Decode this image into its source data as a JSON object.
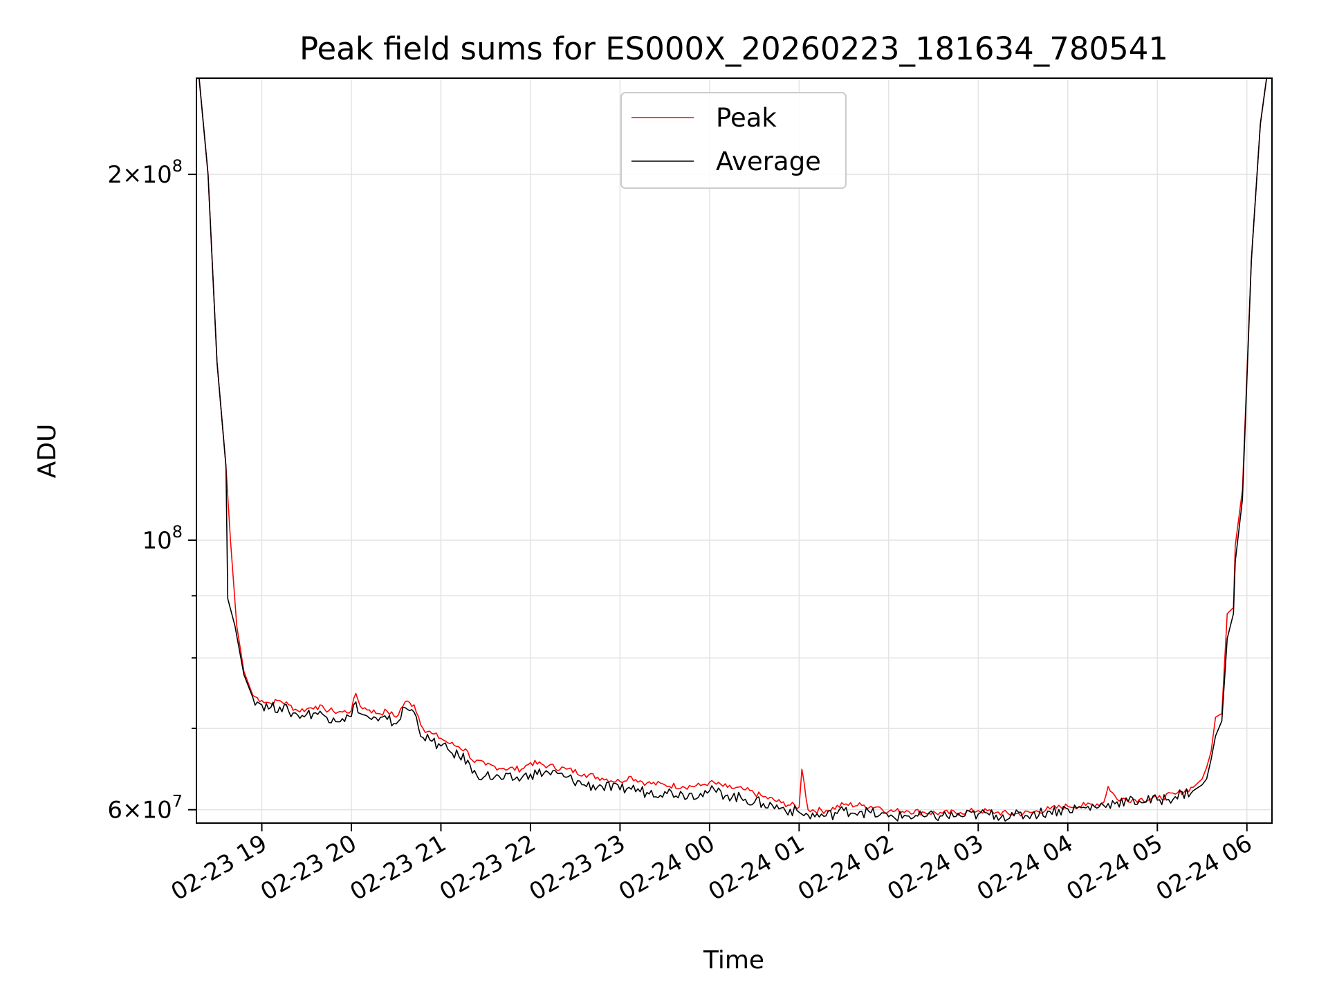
{
  "chart_data": {
    "type": "line",
    "title": "Peak field sums for ES000X_20260223_181634_780541",
    "xlabel": "Time",
    "ylabel": "ADU",
    "yscale": "log",
    "ylim": [
      58500000,
      240000000
    ],
    "xlim_hours": [
      18.27,
      30.28
    ],
    "grid": true,
    "legend_position": "upper center",
    "x_ticks": [
      {
        "hour": 19,
        "label": "02-23 19"
      },
      {
        "hour": 20,
        "label": "02-23 20"
      },
      {
        "hour": 21,
        "label": "02-23 21"
      },
      {
        "hour": 22,
        "label": "02-23 22"
      },
      {
        "hour": 23,
        "label": "02-23 23"
      },
      {
        "hour": 24,
        "label": "02-24 00"
      },
      {
        "hour": 25,
        "label": "02-24 01"
      },
      {
        "hour": 26,
        "label": "02-24 02"
      },
      {
        "hour": 27,
        "label": "02-24 03"
      },
      {
        "hour": 28,
        "label": "02-24 04"
      },
      {
        "hour": 29,
        "label": "02-24 05"
      },
      {
        "hour": 30,
        "label": "02-24 06"
      }
    ],
    "y_major_ticks": [
      {
        "value": 60000000,
        "base": "6",
        "exp": "7"
      },
      {
        "value": 100000000,
        "base": "",
        "exp": "8"
      },
      {
        "value": 200000000,
        "base": "2",
        "exp": "8"
      }
    ],
    "y_minor_ticks": [
      70000000,
      80000000,
      90000000
    ],
    "series": [
      {
        "name": "Peak",
        "color": "#ff0000",
        "points": [
          [
            18.3,
            240000000
          ],
          [
            18.4,
            200000000
          ],
          [
            18.5,
            140000000
          ],
          [
            18.6,
            115000000
          ],
          [
            18.65,
            100000000
          ],
          [
            18.72,
            85000000
          ],
          [
            18.8,
            78000000
          ],
          [
            18.9,
            74500000
          ],
          [
            19.0,
            73800000
          ],
          [
            19.1,
            73400000
          ],
          [
            19.2,
            73800000
          ],
          [
            19.3,
            73200000
          ],
          [
            19.4,
            72400000
          ],
          [
            19.5,
            72600000
          ],
          [
            19.6,
            73000000
          ],
          [
            19.7,
            72600000
          ],
          [
            19.8,
            72300000
          ],
          [
            19.9,
            72200000
          ],
          [
            20.0,
            72400000
          ],
          [
            20.05,
            74800000
          ],
          [
            20.1,
            73000000
          ],
          [
            20.2,
            72500000
          ],
          [
            20.3,
            72000000
          ],
          [
            20.4,
            72300000
          ],
          [
            20.5,
            71500000
          ],
          [
            20.6,
            73600000
          ],
          [
            20.7,
            73200000
          ],
          [
            20.8,
            70000000
          ],
          [
            20.9,
            69300000
          ],
          [
            21.0,
            68700000
          ],
          [
            21.1,
            68000000
          ],
          [
            21.2,
            67600000
          ],
          [
            21.3,
            67000000
          ],
          [
            21.35,
            65900000
          ],
          [
            21.5,
            65300000
          ],
          [
            21.7,
            64900000
          ],
          [
            21.9,
            64800000
          ],
          [
            22.0,
            65600000
          ],
          [
            22.2,
            65200000
          ],
          [
            22.4,
            64800000
          ],
          [
            22.6,
            64200000
          ],
          [
            22.8,
            63700000
          ],
          [
            23.0,
            63300000
          ],
          [
            23.1,
            63900000
          ],
          [
            23.3,
            63100000
          ],
          [
            23.5,
            62900000
          ],
          [
            23.7,
            62700000
          ],
          [
            23.9,
            62800000
          ],
          [
            24.0,
            63200000
          ],
          [
            24.2,
            62600000
          ],
          [
            24.4,
            62300000
          ],
          [
            24.6,
            61500000
          ],
          [
            24.8,
            60800000
          ],
          [
            25.0,
            60300000
          ],
          [
            25.03,
            64800000
          ],
          [
            25.1,
            60000000
          ],
          [
            25.3,
            59900000
          ],
          [
            25.5,
            60600000
          ],
          [
            25.7,
            60500000
          ],
          [
            25.9,
            60300000
          ],
          [
            26.0,
            59800000
          ],
          [
            26.2,
            59900000
          ],
          [
            26.4,
            59700000
          ],
          [
            26.6,
            59600000
          ],
          [
            26.8,
            59700000
          ],
          [
            27.0,
            59900000
          ],
          [
            27.2,
            59700000
          ],
          [
            27.4,
            59500000
          ],
          [
            27.6,
            59700000
          ],
          [
            27.8,
            60100000
          ],
          [
            28.0,
            60400000
          ],
          [
            28.2,
            60500000
          ],
          [
            28.4,
            60800000
          ],
          [
            28.45,
            62700000
          ],
          [
            28.55,
            61200000
          ],
          [
            28.8,
            61200000
          ],
          [
            29.0,
            61300000
          ],
          [
            29.2,
            61800000
          ],
          [
            29.4,
            62600000
          ],
          [
            29.5,
            63600000
          ],
          [
            29.55,
            65000000
          ],
          [
            29.6,
            67000000
          ],
          [
            29.65,
            71500000
          ],
          [
            29.72,
            72000000
          ],
          [
            29.78,
            87000000
          ],
          [
            29.85,
            88000000
          ],
          [
            29.87,
            99000000
          ],
          [
            29.95,
            110000000
          ],
          [
            30.05,
            170000000
          ],
          [
            30.15,
            220000000
          ],
          [
            30.22,
            240000000
          ]
        ]
      },
      {
        "name": "Average",
        "color": "#000000",
        "points": [
          [
            18.3,
            240000000
          ],
          [
            18.4,
            200000000
          ],
          [
            18.5,
            140000000
          ],
          [
            18.6,
            115000000
          ],
          [
            18.62,
            89500000
          ],
          [
            18.7,
            85000000
          ],
          [
            18.8,
            77500000
          ],
          [
            18.9,
            74200000
          ],
          [
            19.0,
            73200000
          ],
          [
            19.1,
            72800000
          ],
          [
            19.2,
            72900000
          ],
          [
            19.3,
            72300000
          ],
          [
            19.4,
            71800000
          ],
          [
            19.5,
            71900000
          ],
          [
            19.6,
            72100000
          ],
          [
            19.7,
            71700000
          ],
          [
            19.8,
            71400000
          ],
          [
            19.9,
            71300000
          ],
          [
            20.0,
            71600000
          ],
          [
            20.05,
            73600000
          ],
          [
            20.1,
            72000000
          ],
          [
            20.2,
            71400000
          ],
          [
            20.3,
            71000000
          ],
          [
            20.4,
            71200000
          ],
          [
            20.5,
            70600000
          ],
          [
            20.6,
            72800000
          ],
          [
            20.7,
            72200000
          ],
          [
            20.8,
            68800000
          ],
          [
            20.9,
            68300000
          ],
          [
            21.0,
            67700000
          ],
          [
            21.1,
            67000000
          ],
          [
            21.2,
            66400000
          ],
          [
            21.3,
            65900000
          ],
          [
            21.35,
            64300000
          ],
          [
            21.5,
            64000000
          ],
          [
            21.7,
            63600000
          ],
          [
            21.9,
            63700000
          ],
          [
            22.0,
            64200000
          ],
          [
            22.2,
            64400000
          ],
          [
            22.4,
            63800000
          ],
          [
            22.6,
            62900000
          ],
          [
            22.8,
            62700000
          ],
          [
            23.0,
            62300000
          ],
          [
            23.1,
            62600000
          ],
          [
            23.3,
            62000000
          ],
          [
            23.5,
            62100000
          ],
          [
            23.7,
            61800000
          ],
          [
            23.9,
            61900000
          ],
          [
            24.0,
            62200000
          ],
          [
            24.2,
            61700000
          ],
          [
            24.4,
            61200000
          ],
          [
            24.6,
            60700000
          ],
          [
            24.8,
            60200000
          ],
          [
            25.0,
            59700000
          ],
          [
            25.03,
            59500000
          ],
          [
            25.1,
            59400000
          ],
          [
            25.3,
            59300000
          ],
          [
            25.5,
            59900000
          ],
          [
            25.7,
            59800000
          ],
          [
            25.9,
            59400000
          ],
          [
            26.0,
            59200000
          ],
          [
            26.2,
            59300000
          ],
          [
            26.4,
            59200000
          ],
          [
            26.6,
            59300000
          ],
          [
            26.8,
            59300000
          ],
          [
            27.0,
            59500000
          ],
          [
            27.2,
            59400000
          ],
          [
            27.4,
            59300000
          ],
          [
            27.6,
            59500000
          ],
          [
            27.8,
            59800000
          ],
          [
            28.0,
            60100000
          ],
          [
            28.2,
            60200000
          ],
          [
            28.4,
            60500000
          ],
          [
            28.45,
            60700000
          ],
          [
            28.55,
            60900000
          ],
          [
            28.8,
            61000000
          ],
          [
            29.0,
            61100000
          ],
          [
            29.2,
            61500000
          ],
          [
            29.4,
            62200000
          ],
          [
            29.5,
            62900000
          ],
          [
            29.55,
            63600000
          ],
          [
            29.6,
            66000000
          ],
          [
            29.65,
            69000000
          ],
          [
            29.72,
            71000000
          ],
          [
            29.78,
            83000000
          ],
          [
            29.85,
            87000000
          ],
          [
            29.87,
            96000000
          ],
          [
            29.95,
            108000000
          ],
          [
            30.05,
            170000000
          ],
          [
            30.15,
            220000000
          ],
          [
            30.22,
            240000000
          ]
        ]
      }
    ]
  }
}
